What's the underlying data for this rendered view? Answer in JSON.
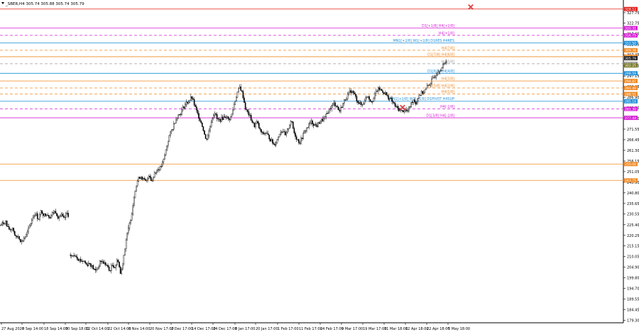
{
  "window": {
    "symbol_line": "_SBER,H4  305.74 305.88 305.74 305.79"
  },
  "colors": {
    "candle": "#000000",
    "magenta": "#d620d6",
    "blue": "#1e8fd8",
    "orange": "#f08a24",
    "red": "#e0201c",
    "gray": "#9a9a9a",
    "olive": "#7a7a2a",
    "dark": "#222222",
    "cross": "#e04040"
  },
  "chart_data": {
    "type": "candlestick",
    "ylim": [
      179.1,
      332.5
    ],
    "y_ticks": [
      "327.75",
      "322.75",
      "317.65",
      "312.55",
      "307.45",
      "302.25",
      "297.15",
      "292.05",
      "286.90",
      "281.80",
      "276.70",
      "271.55",
      "266.45",
      "261.30",
      "256.15",
      "251.05",
      "245.90",
      "240.80",
      "235.65",
      "230.55",
      "225.40",
      "220.25",
      "215.15",
      "210.05",
      "204.90",
      "199.80",
      "194.70",
      "189.55",
      "184.45",
      "179.30"
    ],
    "x_ticks": [
      "27 Aug 2020",
      "8 Sep 14:00",
      "18 Sep 14:00",
      "30 Sep 18:00",
      "12 Oct 14:00",
      "22 Oct 14:00",
      "6 Nov 14:00",
      "20 Nov 17:00",
      "2 Dec 17:00",
      "14 Dec 17:00",
      "24 Dec 17:00",
      "8 Jan 17:00",
      "20 Jan 17:00",
      "1 Feb 17:00",
      "11 Feb 17:00",
      "24 Feb 17:00",
      "9 Mar 17:00",
      "19 Mar 17:00",
      "31 Mar 18:00",
      "12 Apr 18:00",
      "22 Apr 18:00",
      "5 May 18:00"
    ],
    "price_path": [
      [
        0,
        225
      ],
      [
        4,
        226
      ],
      [
        8,
        227
      ],
      [
        10,
        224
      ],
      [
        14,
        223
      ],
      [
        18,
        224
      ],
      [
        22,
        219
      ],
      [
        26,
        220
      ],
      [
        30,
        217
      ],
      [
        34,
        219
      ],
      [
        38,
        221
      ],
      [
        42,
        225
      ],
      [
        46,
        229
      ],
      [
        50,
        231
      ],
      [
        54,
        228
      ],
      [
        58,
        232
      ],
      [
        62,
        230
      ],
      [
        66,
        231
      ],
      [
        70,
        229
      ],
      [
        74,
        231
      ],
      [
        78,
        232
      ],
      [
        82,
        229
      ],
      [
        86,
        230
      ],
      [
        90,
        228
      ],
      [
        94,
        231
      ],
      [
        96,
        230
      ],
      [
        98,
        211
      ],
      [
        102,
        210
      ],
      [
        106,
        211
      ],
      [
        110,
        209
      ],
      [
        114,
        208
      ],
      [
        118,
        208
      ],
      [
        122,
        206
      ],
      [
        126,
        207
      ],
      [
        130,
        205
      ],
      [
        134,
        203
      ],
      [
        138,
        205
      ],
      [
        142,
        208
      ],
      [
        146,
        207
      ],
      [
        150,
        206
      ],
      [
        154,
        203
      ],
      [
        158,
        206
      ],
      [
        162,
        205
      ],
      [
        166,
        209
      ],
      [
        170,
        201
      ],
      [
        174,
        210
      ],
      [
        178,
        219
      ],
      [
        182,
        225
      ],
      [
        186,
        232
      ],
      [
        190,
        242
      ],
      [
        194,
        247
      ],
      [
        198,
        249
      ],
      [
        202,
        247
      ],
      [
        206,
        246
      ],
      [
        210,
        250
      ],
      [
        214,
        246
      ],
      [
        218,
        251
      ],
      [
        222,
        252
      ],
      [
        226,
        253
      ],
      [
        230,
        256
      ],
      [
        234,
        262
      ],
      [
        238,
        268
      ],
      [
        242,
        271
      ],
      [
        246,
        275
      ],
      [
        250,
        278
      ],
      [
        254,
        279
      ],
      [
        258,
        282
      ],
      [
        262,
        284
      ],
      [
        266,
        285
      ],
      [
        270,
        287
      ],
      [
        274,
        283
      ],
      [
        278,
        279
      ],
      [
        282,
        276
      ],
      [
        286,
        272
      ],
      [
        290,
        266
      ],
      [
        294,
        270
      ],
      [
        298,
        276
      ],
      [
        302,
        280
      ],
      [
        306,
        276
      ],
      [
        310,
        276
      ],
      [
        314,
        277
      ],
      [
        318,
        278
      ],
      [
        322,
        276
      ],
      [
        326,
        278
      ],
      [
        330,
        284
      ],
      [
        334,
        289
      ],
      [
        338,
        292
      ],
      [
        342,
        288
      ],
      [
        346,
        281
      ],
      [
        350,
        279
      ],
      [
        354,
        276
      ],
      [
        358,
        273
      ],
      [
        362,
        275
      ],
      [
        366,
        271
      ],
      [
        370,
        269
      ],
      [
        374,
        270
      ],
      [
        378,
        268
      ],
      [
        382,
        266
      ],
      [
        386,
        264
      ],
      [
        390,
        266
      ],
      [
        394,
        270
      ],
      [
        398,
        271
      ],
      [
        402,
        268
      ],
      [
        406,
        272
      ],
      [
        410,
        276
      ],
      [
        414,
        270
      ],
      [
        418,
        267
      ],
      [
        422,
        265
      ],
      [
        426,
        268
      ],
      [
        430,
        271
      ],
      [
        434,
        273
      ],
      [
        438,
        275
      ],
      [
        442,
        274
      ],
      [
        446,
        273
      ],
      [
        450,
        275
      ],
      [
        454,
        276
      ],
      [
        458,
        277
      ],
      [
        462,
        280
      ],
      [
        466,
        282
      ],
      [
        470,
        284
      ],
      [
        474,
        283
      ],
      [
        478,
        280
      ],
      [
        482,
        283
      ],
      [
        486,
        286
      ],
      [
        490,
        288
      ],
      [
        494,
        290
      ],
      [
        498,
        289
      ],
      [
        502,
        286
      ],
      [
        506,
        284
      ],
      [
        510,
        283
      ],
      [
        514,
        286
      ],
      [
        518,
        288
      ],
      [
        522,
        285
      ],
      [
        526,
        286
      ],
      [
        530,
        290
      ],
      [
        534,
        291
      ],
      [
        538,
        290
      ],
      [
        542,
        289
      ],
      [
        546,
        287
      ],
      [
        550,
        286
      ],
      [
        554,
        284
      ],
      [
        558,
        282
      ],
      [
        562,
        281
      ],
      [
        566,
        280
      ],
      [
        570,
        281
      ],
      [
        574,
        280
      ],
      [
        578,
        283
      ],
      [
        582,
        286
      ],
      [
        586,
        284
      ],
      [
        590,
        288
      ],
      [
        594,
        289
      ],
      [
        598,
        290
      ],
      [
        602,
        292
      ],
      [
        606,
        294
      ],
      [
        610,
        296
      ],
      [
        614,
        298
      ],
      [
        618,
        300
      ],
      [
        622,
        301
      ],
      [
        626,
        303
      ],
      [
        630,
        306
      ]
    ],
    "levels": [
      {
        "price": 329.5,
        "color": "red",
        "style": "solid",
        "label": "",
        "badge": "328.12"
      },
      {
        "price": 320.3,
        "color": "magenta",
        "style": "solid",
        "label": "D1[+1/8] H4[+2/8]",
        "badge": "320.31"
      },
      {
        "price": 316.8,
        "color": "magenta",
        "style": "dashed",
        "label": "H4[+1/8]",
        "badge": "316.75"
      },
      {
        "price": 313.1,
        "color": "blue",
        "style": "solid",
        "label": "MN1[+2/8] W1[+2/8] D1RES H4RES",
        "badge": "312.50"
      },
      {
        "price": 309.6,
        "color": "orange",
        "style": "dashed",
        "label": "H4[7/8]",
        "badge": "309.38"
      },
      {
        "price": 306.5,
        "color": "orange",
        "style": "solid",
        "label": "D1[7/8] H4[6/8]",
        "badge": "306.25"
      },
      {
        "price": 305.8,
        "color": "dark",
        "style": "none",
        "label": "",
        "badge": "305.79"
      },
      {
        "price": 303.1,
        "color": "gray",
        "style": "dashed",
        "label": "H4[5/8]",
        "badge": "303.20"
      },
      {
        "price": 302.3,
        "color": "olive",
        "style": "none",
        "label": "",
        "badge": "302.25"
      },
      {
        "price": 298.5,
        "color": "blue",
        "style": "solid",
        "label": "D1[6/8] H4[4/8]",
        "badge": "298.59"
      },
      {
        "price": 294.8,
        "color": "orange",
        "style": "solid",
        "label": "H4[3/8]",
        "badge": "294.87"
      },
      {
        "price": 291.4,
        "color": "orange",
        "style": "dashed",
        "label": "D1[5/8] H4[2/8]",
        "badge": "291.40"
      },
      {
        "price": 288.5,
        "color": "orange",
        "style": "dashed",
        "label": "H4[1/8]",
        "badge": "288.51"
      },
      {
        "price": 285.0,
        "color": "blue",
        "style": "solid",
        "label": "MN1[+1/8] W1[+1/8] D1PIVOT H4SUP",
        "badge": "285.16"
      },
      {
        "price": 281.3,
        "color": "magenta",
        "style": "dashed",
        "label": "H4[-1/8]",
        "badge": "281.30"
      },
      {
        "price": 277.0,
        "color": "magenta",
        "style": "solid",
        "label": "D1[3/8] H4[-2/8]",
        "badge": "277.44"
      },
      {
        "price": 254.7,
        "color": "orange",
        "style": "solid",
        "label": "",
        "badge": "250.00"
      },
      {
        "price": 246.8,
        "color": "orange",
        "style": "solid",
        "label": "",
        "badge": "243.75"
      }
    ],
    "crosses": [
      {
        "bar": 567,
        "price": 282
      },
      {
        "bar": 663,
        "price": 330.5
      }
    ]
  }
}
